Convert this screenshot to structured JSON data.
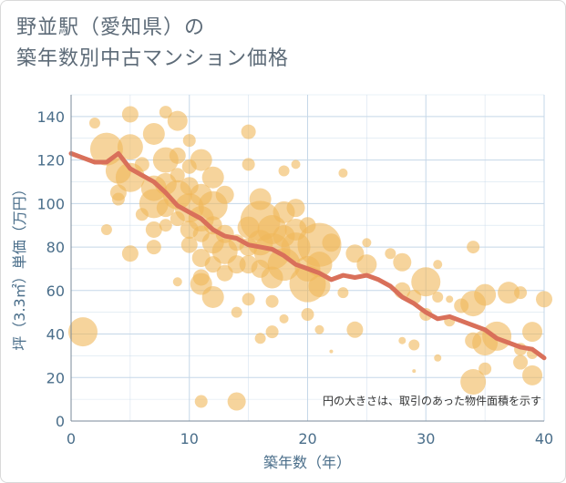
{
  "title": {
    "line1": "野並駅（愛知県）の",
    "line2": "築年数別中古マンション価格"
  },
  "chart_data": {
    "type": "scatter",
    "title": "野並駅（愛知県）の築年数別中古マンション価格",
    "xlabel": "築年数（年）",
    "ylabel": "坪（3.3㎡）単価（万円）",
    "xlim": [
      0,
      40
    ],
    "ylim": [
      0,
      150
    ],
    "xticks": [
      0,
      10,
      20,
      30,
      40
    ],
    "yticks": [
      0,
      20,
      40,
      60,
      80,
      100,
      120,
      140
    ],
    "grid": true,
    "note": "円の大きさは、取引のあった物件面積を示す",
    "colors": {
      "bubble": "#f0b85a",
      "trend": "#d9705a",
      "grid": "#c5d7e8"
    },
    "points": [
      {
        "x": 1,
        "y": 41,
        "s": 16
      },
      {
        "x": 2,
        "y": 137,
        "s": 6
      },
      {
        "x": 3,
        "y": 125,
        "s": 18
      },
      {
        "x": 3,
        "y": 88,
        "s": 6
      },
      {
        "x": 4,
        "y": 115,
        "s": 14
      },
      {
        "x": 4,
        "y": 105,
        "s": 9
      },
      {
        "x": 4,
        "y": 102,
        "s": 7
      },
      {
        "x": 5,
        "y": 141,
        "s": 9
      },
      {
        "x": 5,
        "y": 126,
        "s": 14
      },
      {
        "x": 5,
        "y": 112,
        "s": 16
      },
      {
        "x": 5,
        "y": 77,
        "s": 9
      },
      {
        "x": 6,
        "y": 95,
        "s": 7
      },
      {
        "x": 6,
        "y": 118,
        "s": 8
      },
      {
        "x": 7,
        "y": 132,
        "s": 12
      },
      {
        "x": 7,
        "y": 107,
        "s": 14
      },
      {
        "x": 7,
        "y": 100,
        "s": 16
      },
      {
        "x": 7,
        "y": 88,
        "s": 9
      },
      {
        "x": 7,
        "y": 80,
        "s": 8
      },
      {
        "x": 8,
        "y": 142,
        "s": 7
      },
      {
        "x": 8,
        "y": 120,
        "s": 14
      },
      {
        "x": 8,
        "y": 109,
        "s": 12
      },
      {
        "x": 8,
        "y": 98,
        "s": 10
      },
      {
        "x": 8,
        "y": 90,
        "s": 7
      },
      {
        "x": 9,
        "y": 138,
        "s": 11
      },
      {
        "x": 9,
        "y": 122,
        "s": 9
      },
      {
        "x": 9,
        "y": 113,
        "s": 8
      },
      {
        "x": 9,
        "y": 104,
        "s": 16
      },
      {
        "x": 9,
        "y": 93,
        "s": 8
      },
      {
        "x": 9,
        "y": 64,
        "s": 5
      },
      {
        "x": 10,
        "y": 129,
        "s": 7
      },
      {
        "x": 10,
        "y": 117,
        "s": 8
      },
      {
        "x": 10,
        "y": 108,
        "s": 10
      },
      {
        "x": 10,
        "y": 98,
        "s": 16
      },
      {
        "x": 10,
        "y": 88,
        "s": 10
      },
      {
        "x": 10,
        "y": 81,
        "s": 9
      },
      {
        "x": 11,
        "y": 120,
        "s": 12
      },
      {
        "x": 11,
        "y": 104,
        "s": 12
      },
      {
        "x": 11,
        "y": 93,
        "s": 14
      },
      {
        "x": 11,
        "y": 86,
        "s": 9
      },
      {
        "x": 11,
        "y": 75,
        "s": 10
      },
      {
        "x": 11,
        "y": 66,
        "s": 9
      },
      {
        "x": 11,
        "y": 63,
        "s": 12
      },
      {
        "x": 11,
        "y": 9,
        "s": 7
      },
      {
        "x": 12,
        "y": 112,
        "s": 12
      },
      {
        "x": 12,
        "y": 99,
        "s": 16
      },
      {
        "x": 12,
        "y": 90,
        "s": 10
      },
      {
        "x": 12,
        "y": 82,
        "s": 12
      },
      {
        "x": 12,
        "y": 72,
        "s": 9
      },
      {
        "x": 12,
        "y": 57,
        "s": 12
      },
      {
        "x": 13,
        "y": 104,
        "s": 10
      },
      {
        "x": 13,
        "y": 86,
        "s": 10
      },
      {
        "x": 13,
        "y": 78,
        "s": 14
      },
      {
        "x": 13,
        "y": 68,
        "s": 9
      },
      {
        "x": 14,
        "y": 82,
        "s": 9
      },
      {
        "x": 14,
        "y": 72,
        "s": 10
      },
      {
        "x": 14,
        "y": 50,
        "s": 6
      },
      {
        "x": 14,
        "y": 9,
        "s": 10
      },
      {
        "x": 15,
        "y": 133,
        "s": 8
      },
      {
        "x": 15,
        "y": 118,
        "s": 7
      },
      {
        "x": 15,
        "y": 89,
        "s": 12
      },
      {
        "x": 15,
        "y": 80,
        "s": 10
      },
      {
        "x": 15,
        "y": 72,
        "s": 10
      },
      {
        "x": 15,
        "y": 56,
        "s": 7
      },
      {
        "x": 16,
        "y": 102,
        "s": 12
      },
      {
        "x": 16,
        "y": 92,
        "s": 22
      },
      {
        "x": 16,
        "y": 82,
        "s": 14
      },
      {
        "x": 16,
        "y": 70,
        "s": 10
      },
      {
        "x": 16,
        "y": 38,
        "s": 6
      },
      {
        "x": 17,
        "y": 88,
        "s": 16
      },
      {
        "x": 17,
        "y": 78,
        "s": 20
      },
      {
        "x": 17,
        "y": 66,
        "s": 12
      },
      {
        "x": 17,
        "y": 55,
        "s": 7
      },
      {
        "x": 17,
        "y": 41,
        "s": 7
      },
      {
        "x": 18,
        "y": 115,
        "s": 6
      },
      {
        "x": 18,
        "y": 96,
        "s": 12
      },
      {
        "x": 18,
        "y": 85,
        "s": 12
      },
      {
        "x": 18,
        "y": 72,
        "s": 18
      },
      {
        "x": 18,
        "y": 47,
        "s": 5
      },
      {
        "x": 19,
        "y": 118,
        "s": 5
      },
      {
        "x": 19,
        "y": 98,
        "s": 10
      },
      {
        "x": 19,
        "y": 88,
        "s": 12
      },
      {
        "x": 19,
        "y": 80,
        "s": 16
      },
      {
        "x": 20,
        "y": 90,
        "s": 9
      },
      {
        "x": 20,
        "y": 70,
        "s": 14
      },
      {
        "x": 20,
        "y": 63,
        "s": 20
      },
      {
        "x": 20,
        "y": 49,
        "s": 7
      },
      {
        "x": 21,
        "y": 81,
        "s": 24
      },
      {
        "x": 21,
        "y": 72,
        "s": 14
      },
      {
        "x": 21,
        "y": 62,
        "s": 12
      },
      {
        "x": 21,
        "y": 42,
        "s": 5
      },
      {
        "x": 22,
        "y": 82,
        "s": 10
      },
      {
        "x": 22,
        "y": 32,
        "s": 2
      },
      {
        "x": 23,
        "y": 114,
        "s": 5
      },
      {
        "x": 23,
        "y": 59,
        "s": 6
      },
      {
        "x": 24,
        "y": 77,
        "s": 10
      },
      {
        "x": 24,
        "y": 42,
        "s": 9
      },
      {
        "x": 25,
        "y": 82,
        "s": 5
      },
      {
        "x": 25,
        "y": 72,
        "s": 11
      },
      {
        "x": 27,
        "y": 77,
        "s": 6
      },
      {
        "x": 28,
        "y": 73,
        "s": 10
      },
      {
        "x": 28,
        "y": 60,
        "s": 9
      },
      {
        "x": 28,
        "y": 37,
        "s": 4
      },
      {
        "x": 29,
        "y": 57,
        "s": 8
      },
      {
        "x": 29,
        "y": 35,
        "s": 6
      },
      {
        "x": 29,
        "y": 23,
        "s": 2
      },
      {
        "x": 30,
        "y": 64,
        "s": 16
      },
      {
        "x": 30,
        "y": 49,
        "s": 7
      },
      {
        "x": 31,
        "y": 72,
        "s": 5
      },
      {
        "x": 31,
        "y": 57,
        "s": 6
      },
      {
        "x": 31,
        "y": 29,
        "s": 4
      },
      {
        "x": 32,
        "y": 56,
        "s": 4
      },
      {
        "x": 32,
        "y": 46,
        "s": 6
      },
      {
        "x": 33,
        "y": 53,
        "s": 8
      },
      {
        "x": 34,
        "y": 80,
        "s": 7
      },
      {
        "x": 34,
        "y": 54,
        "s": 14
      },
      {
        "x": 34,
        "y": 37,
        "s": 9
      },
      {
        "x": 34,
        "y": 18,
        "s": 14
      },
      {
        "x": 35,
        "y": 58,
        "s": 12
      },
      {
        "x": 35,
        "y": 36,
        "s": 14
      },
      {
        "x": 35,
        "y": 24,
        "s": 7
      },
      {
        "x": 36,
        "y": 39,
        "s": 16
      },
      {
        "x": 37,
        "y": 59,
        "s": 12
      },
      {
        "x": 38,
        "y": 59,
        "s": 7
      },
      {
        "x": 38,
        "y": 33,
        "s": 7
      },
      {
        "x": 38,
        "y": 27,
        "s": 8
      },
      {
        "x": 39,
        "y": 41,
        "s": 11
      },
      {
        "x": 39,
        "y": 31,
        "s": 6
      },
      {
        "x": 39,
        "y": 21,
        "s": 11
      },
      {
        "x": 40,
        "y": 56,
        "s": 9
      }
    ],
    "trend": [
      {
        "x": 0,
        "y": 123
      },
      {
        "x": 1,
        "y": 121
      },
      {
        "x": 2,
        "y": 119
      },
      {
        "x": 3,
        "y": 119
      },
      {
        "x": 4,
        "y": 123
      },
      {
        "x": 5,
        "y": 116
      },
      {
        "x": 6,
        "y": 113
      },
      {
        "x": 7,
        "y": 110
      },
      {
        "x": 8,
        "y": 105
      },
      {
        "x": 9,
        "y": 99
      },
      {
        "x": 10,
        "y": 96
      },
      {
        "x": 11,
        "y": 93
      },
      {
        "x": 12,
        "y": 88
      },
      {
        "x": 13,
        "y": 85
      },
      {
        "x": 14,
        "y": 84
      },
      {
        "x": 15,
        "y": 81
      },
      {
        "x": 16,
        "y": 80
      },
      {
        "x": 17,
        "y": 79
      },
      {
        "x": 18,
        "y": 76
      },
      {
        "x": 19,
        "y": 72
      },
      {
        "x": 20,
        "y": 70
      },
      {
        "x": 21,
        "y": 68
      },
      {
        "x": 22,
        "y": 65
      },
      {
        "x": 23,
        "y": 67
      },
      {
        "x": 24,
        "y": 66
      },
      {
        "x": 25,
        "y": 67
      },
      {
        "x": 26,
        "y": 65
      },
      {
        "x": 27,
        "y": 62
      },
      {
        "x": 28,
        "y": 57
      },
      {
        "x": 29,
        "y": 54
      },
      {
        "x": 30,
        "y": 50
      },
      {
        "x": 31,
        "y": 47
      },
      {
        "x": 32,
        "y": 48
      },
      {
        "x": 33,
        "y": 46
      },
      {
        "x": 34,
        "y": 44
      },
      {
        "x": 35,
        "y": 42
      },
      {
        "x": 36,
        "y": 38
      },
      {
        "x": 37,
        "y": 36
      },
      {
        "x": 38,
        "y": 34
      },
      {
        "x": 39,
        "y": 33
      },
      {
        "x": 40,
        "y": 29
      }
    ]
  }
}
